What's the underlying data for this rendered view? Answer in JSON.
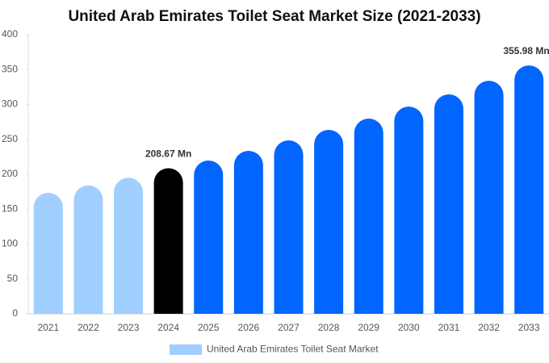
{
  "chart_data": {
    "type": "bar",
    "title": "United Arab Emirates Toilet Seat Market Size (2021-2033)",
    "categories": [
      "2021",
      "2022",
      "2023",
      "2024",
      "2025",
      "2026",
      "2027",
      "2028",
      "2029",
      "2030",
      "2031",
      "2032",
      "2033"
    ],
    "series": [
      {
        "name": "United Arab Emirates Toilet Seat Market",
        "color": "#a0cfff",
        "colors": [
          "#a0cfff",
          "#a0cfff",
          "#a0cfff",
          "#000000",
          "#0066ff",
          "#0066ff",
          "#0066ff",
          "#0066ff",
          "#0066ff",
          "#0066ff",
          "#0066ff",
          "#0066ff",
          "#0066ff"
        ],
        "values": [
          173.4,
          184,
          195,
          208.67,
          219.7,
          233.5,
          248.6,
          263.6,
          279.8,
          297,
          314.5,
          334,
          355.98
        ],
        "value_labels": [
          null,
          null,
          null,
          "208.67 Mn",
          null,
          null,
          null,
          null,
          null,
          null,
          null,
          null,
          "355.98 Mn"
        ]
      }
    ],
    "ylim": [
      0,
      400
    ],
    "yticks": [
      0,
      50,
      100,
      150,
      200,
      250,
      300,
      350,
      400
    ]
  }
}
